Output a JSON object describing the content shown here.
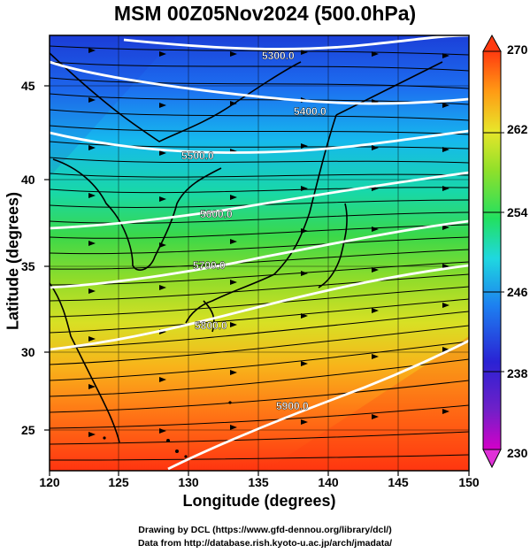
{
  "title": "MSM 00Z05Nov2024 (500.0hPa)",
  "x_axis": {
    "label": "Longitude (degrees)",
    "ticks": [
      "120",
      "125",
      "130",
      "135",
      "140",
      "145",
      "150"
    ]
  },
  "y_axis": {
    "label": "Latitude  (degrees)",
    "ticks": [
      "25",
      "30",
      "35",
      "40",
      "45"
    ]
  },
  "colorbar": {
    "ticks": [
      "230",
      "238",
      "246",
      "254",
      "262",
      "270"
    ],
    "colors": [
      "#d400c8",
      "#3b1bd4",
      "#1d7ff0",
      "#1fd0e8",
      "#2ee07a",
      "#8fe02a",
      "#e4e82a",
      "#ff9a14",
      "#ff3a10"
    ]
  },
  "contours": [
    "5300.0",
    "5400.0",
    "5500.0",
    "5600.0",
    "5700.0",
    "5800.0",
    "5900.0"
  ],
  "credits": {
    "line1": "Drawing by DCL (https://www.gfd-dennou.org/library/dcl/)",
    "line2": "Data from http://database.rish.kyoto-u.ac.jp/arch/jmadata/"
  }
}
